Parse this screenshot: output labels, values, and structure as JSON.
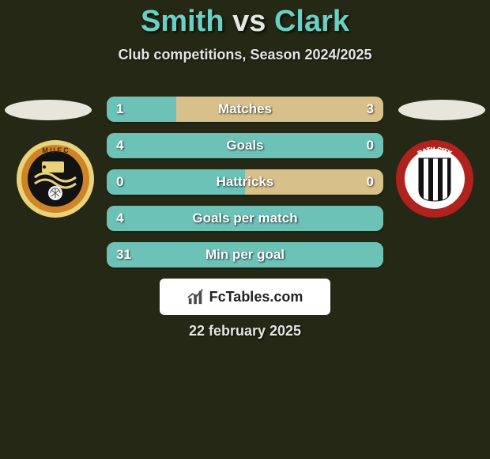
{
  "background_color": "#252814",
  "title": {
    "player1": "Smith",
    "vs": "vs",
    "player2": "Clark",
    "color_player": "#6bd0c4",
    "color_vs": "#e2e7e0",
    "fontsize": 38
  },
  "subtitle": {
    "text": "Club competitions, Season 2024/2025",
    "color": "#e4e4e4",
    "fontsize": 18
  },
  "ellipse_color": "#e6e6dc",
  "bars": {
    "left_color": "#6dc2b8",
    "right_color": "#d8c08a",
    "track_color": "#d8c08a",
    "label_color": "#ffffff",
    "height": 32,
    "border_radius": 10,
    "rows": [
      {
        "label": "Matches",
        "left_value": "1",
        "right_value": "3",
        "left_pct": 25,
        "right_pct": 75
      },
      {
        "label": "Goals",
        "left_value": "4",
        "right_value": "0",
        "left_pct": 100,
        "right_pct": 0
      },
      {
        "label": "Hattricks",
        "left_value": "0",
        "right_value": "0",
        "left_pct": 50,
        "right_pct": 50
      },
      {
        "label": "Goals per match",
        "left_value": "4",
        "right_value": "",
        "left_pct": 100,
        "right_pct": 0
      },
      {
        "label": "Min per goal",
        "left_value": "31",
        "right_value": "",
        "left_pct": 100,
        "right_pct": 0
      }
    ]
  },
  "badges": {
    "left": {
      "name": "mufc-badge",
      "ring_outer": "#e8d27a",
      "ring_inner": "#ce8427",
      "center_bg": "#121212",
      "text": "MUFC"
    },
    "right": {
      "name": "bath-city-badge",
      "ring_outer": "#b0221e",
      "center_bg": "#ffffff",
      "stripe": "#111111",
      "text": "BATH CITY"
    }
  },
  "brand": {
    "text": "FcTables.com",
    "bg": "#ffffff",
    "color": "#222222"
  },
  "date": {
    "text": "22 february 2025",
    "color": "#e4e4e4"
  }
}
